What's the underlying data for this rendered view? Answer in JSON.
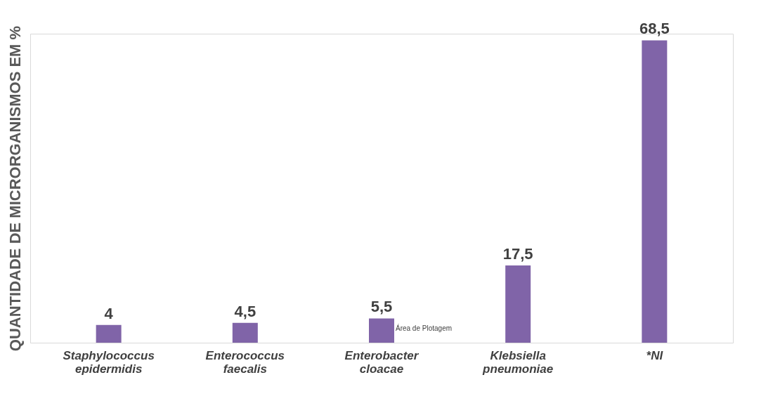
{
  "chart_data": {
    "type": "bar",
    "ylabel": "QUANTIDADE DE MICRORGANISMOS EM %",
    "categories": [
      "Staphylococcus epidermidis",
      "Enterococcus faecalis",
      "Enterobacter cloacae",
      "Klebsiella pneumoniae",
      "*NI"
    ],
    "values": [
      4,
      4.5,
      5.5,
      17.5,
      68.5
    ],
    "value_labels": [
      "4",
      "4,5",
      "5,5",
      "17,5",
      "68,5"
    ],
    "color": "#8064a8",
    "grid": false,
    "annotations": [
      "Área de Plotagem"
    ]
  }
}
